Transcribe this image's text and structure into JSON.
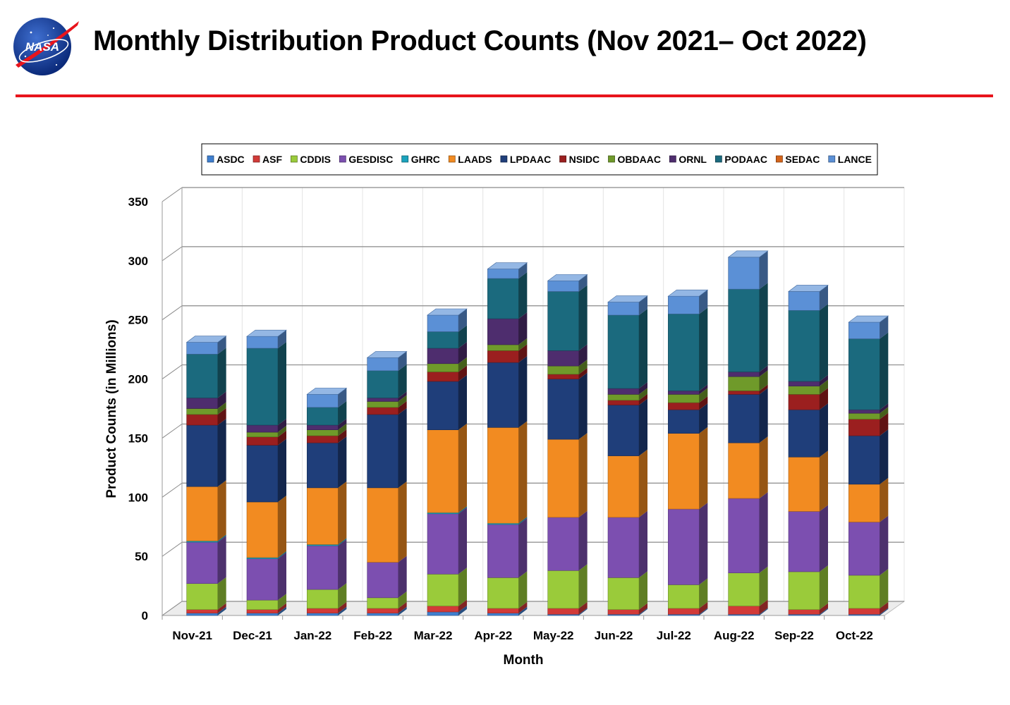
{
  "header": {
    "title": "Monthly Distribution Product Counts (Nov 2021– Oct 2022)",
    "logo_text": "NASA",
    "rule_color": "#e8141c"
  },
  "chart_data": {
    "type": "bar",
    "stacked": true,
    "three_d": true,
    "title": "",
    "xlabel": "Month",
    "ylabel": "Product Counts (in Millions)",
    "ylim": [
      0,
      350
    ],
    "yticks": [
      0,
      50,
      100,
      150,
      200,
      250,
      300,
      350
    ],
    "grid": true,
    "legend_position": "top",
    "categories": [
      "Nov-21",
      "Dec-21",
      "Jan-22",
      "Feb-22",
      "Mar-22",
      "Apr-22",
      "May-22",
      "Jun-22",
      "Jul-22",
      "Aug-22",
      "Sep-22",
      "Oct-22"
    ],
    "series": [
      {
        "name": "ASDC",
        "color": "#3f7fcf",
        "values": [
          2,
          2,
          2,
          2,
          3,
          2,
          1,
          1,
          1,
          1,
          1,
          1
        ]
      },
      {
        "name": "ASF",
        "color": "#d23a38",
        "values": [
          3,
          3,
          4,
          4,
          5,
          4,
          5,
          4,
          5,
          7,
          4,
          5
        ]
      },
      {
        "name": "CDDIS",
        "color": "#9acb3a",
        "values": [
          22,
          8,
          16,
          9,
          27,
          26,
          32,
          27,
          20,
          28,
          32,
          28
        ]
      },
      {
        "name": "GESDISC",
        "color": "#7c4fb0",
        "values": [
          35,
          35,
          37,
          30,
          51,
          45,
          45,
          51,
          64,
          63,
          51,
          45
        ]
      },
      {
        "name": "GHRC",
        "color": "#1aa3bd",
        "values": [
          1,
          1,
          1,
          0,
          1,
          1,
          0,
          0,
          0,
          0,
          0,
          0
        ]
      },
      {
        "name": "LAADS",
        "color": "#f28b21",
        "values": [
          46,
          47,
          48,
          63,
          70,
          81,
          66,
          52,
          64,
          47,
          46,
          32
        ]
      },
      {
        "name": "LPDAAC",
        "color": "#1f3e7a",
        "values": [
          52,
          48,
          38,
          62,
          41,
          55,
          51,
          43,
          20,
          41,
          40,
          41
        ]
      },
      {
        "name": "NSIDC",
        "color": "#9b1f1f",
        "values": [
          9,
          7,
          6,
          6,
          8,
          10,
          4,
          4,
          6,
          3,
          13,
          14
        ]
      },
      {
        "name": "OBDAAC",
        "color": "#6f9a2a",
        "values": [
          5,
          4,
          5,
          5,
          7,
          5,
          7,
          5,
          7,
          12,
          7,
          5
        ]
      },
      {
        "name": "ORNL",
        "color": "#4e2d6e",
        "values": [
          9,
          6,
          4,
          3,
          13,
          22,
          13,
          5,
          3,
          4,
          4,
          3
        ]
      },
      {
        "name": "PODAAC",
        "color": "#1b6a7e",
        "values": [
          37,
          65,
          15,
          23,
          14,
          34,
          50,
          62,
          65,
          70,
          60,
          60
        ]
      },
      {
        "name": "SEDAC",
        "color": "#d4641a",
        "values": [
          0,
          0,
          0,
          0,
          0,
          0,
          0,
          0,
          0,
          0,
          0,
          0
        ]
      },
      {
        "name": "LANCE",
        "color": "#5b90d6",
        "values": [
          10,
          10,
          11,
          11,
          14,
          8,
          9,
          11,
          15,
          27,
          16,
          14
        ]
      }
    ]
  }
}
